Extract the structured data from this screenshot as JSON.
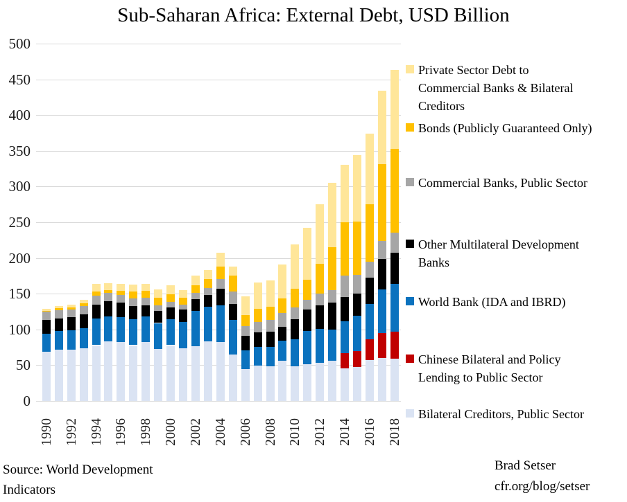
{
  "title": "Sub-Saharan Africa: External Debt, USD Billion",
  "source": {
    "line1": "Source: World Development",
    "line2": "Indicators"
  },
  "credit": {
    "line1": "Brad Setser",
    "line2": "cfr.org/blog/setser"
  },
  "legend": [
    {
      "name": "private-sector-debt",
      "color": "#ffe699",
      "lines": [
        "Private Sector Debt to",
        "Commercial Banks & Bilateral",
        "Creditors"
      ]
    },
    {
      "name": "bonds",
      "color": "#ffc000",
      "lines": [
        "Bonds (Publicly Guaranteed Only)"
      ]
    },
    {
      "name": "commercial-banks",
      "color": "#a6a6a6",
      "lines": [
        "Commercial Banks, Public Sector"
      ]
    },
    {
      "name": "other-mdb",
      "color": "#000000",
      "lines": [
        "Other Multilateral Development",
        "Banks"
      ]
    },
    {
      "name": "world-bank",
      "color": "#0b72be",
      "lines": [
        "World Bank (IDA and IBRD)"
      ]
    },
    {
      "name": "chinese-bilateral",
      "color": "#c00000",
      "lines": [
        "Chinese Bilateral and Policy",
        "Lending to Public Sector"
      ]
    },
    {
      "name": "bilateral-creditors",
      "color": "#dae3f3",
      "lines": [
        "Bilateral Creditors, Public Sector"
      ]
    }
  ],
  "chart_data": {
    "type": "bar",
    "stacked": true,
    "title": "Sub-Saharan Africa: External Debt, USD Billion",
    "xlabel": "",
    "ylabel": "USD Billion",
    "ylim": [
      0,
      500
    ],
    "y_ticks": [
      0,
      50,
      100,
      150,
      200,
      250,
      300,
      350,
      400,
      450,
      500
    ],
    "grid": true,
    "gridline_color": "#d9d9d9",
    "legend_position": "right",
    "categories": [
      1990,
      1991,
      1992,
      1993,
      1994,
      1995,
      1996,
      1997,
      1998,
      1999,
      2000,
      2001,
      2002,
      2003,
      2004,
      2005,
      2006,
      2007,
      2008,
      2009,
      2010,
      2011,
      2012,
      2013,
      2014,
      2015,
      2016,
      2017,
      2018
    ],
    "x_tick_labels": [
      "1990",
      "1992",
      "1994",
      "1996",
      "1998",
      "2000",
      "2002",
      "2004",
      "2006",
      "2008",
      "2010",
      "2012",
      "2014",
      "2016",
      "2018"
    ],
    "series": [
      {
        "name": "Bilateral Creditors, Public Sector",
        "color": "#dae3f3",
        "values": [
          69,
          72,
          72,
          74,
          78,
          83,
          82,
          78,
          82,
          73,
          78,
          74,
          77,
          83,
          82,
          65,
          45,
          49,
          48,
          56,
          48,
          51,
          53,
          56,
          46,
          47,
          57,
          60,
          59
        ]
      },
      {
        "name": "Chinese Bilateral and Policy Lending to Public Sector",
        "color": "#c00000",
        "values": [
          0,
          0,
          0,
          0,
          0,
          0,
          0,
          0,
          0,
          0,
          0,
          0,
          0,
          0,
          0,
          0,
          0,
          0,
          0,
          0,
          0,
          0,
          0,
          0,
          21,
          23,
          29,
          35,
          38
        ]
      },
      {
        "name": "World Bank (IDA and IBRD)",
        "color": "#0b72be",
        "values": [
          25,
          26,
          27,
          28,
          37,
          35,
          35,
          36,
          36,
          36,
          36,
          36,
          49,
          49,
          52,
          48,
          26,
          27,
          28,
          28,
          38,
          47,
          48,
          44,
          44,
          49,
          50,
          61,
          67
        ]
      },
      {
        "name": "Other Multilateral Development Banks",
        "color": "#000000",
        "values": [
          19,
          17,
          18,
          19,
          20,
          22,
          21,
          19,
          16,
          17,
          17,
          18,
          16,
          16,
          23,
          23,
          20,
          20,
          21,
          20,
          28,
          30,
          33,
          38,
          34,
          31,
          36,
          43,
          43
        ]
      },
      {
        "name": "Commercial Banks, Public Sector",
        "color": "#a6a6a6",
        "values": [
          12,
          12,
          11,
          12,
          12,
          11,
          10,
          10,
          10,
          8,
          8,
          7,
          9,
          10,
          14,
          17,
          14,
          14,
          16,
          19,
          17,
          13,
          16,
          17,
          30,
          26,
          23,
          25,
          28
        ]
      },
      {
        "name": "Bonds (Publicly Guaranteed Only)",
        "color": "#ffc000",
        "values": [
          1,
          3,
          3,
          4,
          6,
          4,
          6,
          10,
          10,
          10,
          10,
          9,
          11,
          13,
          17,
          22,
          15,
          19,
          19,
          20,
          26,
          29,
          42,
          60,
          75,
          75,
          80,
          107,
          118
        ]
      },
      {
        "name": "Private Sector Debt to Commercial Banks & Bilateral Creditors",
        "color": "#ffe699",
        "values": [
          3,
          3,
          4,
          4,
          11,
          10,
          10,
          10,
          10,
          12,
          13,
          11,
          13,
          12,
          19,
          13,
          26,
          37,
          37,
          48,
          62,
          72,
          83,
          90,
          80,
          93,
          99,
          103,
          110
        ]
      }
    ]
  }
}
